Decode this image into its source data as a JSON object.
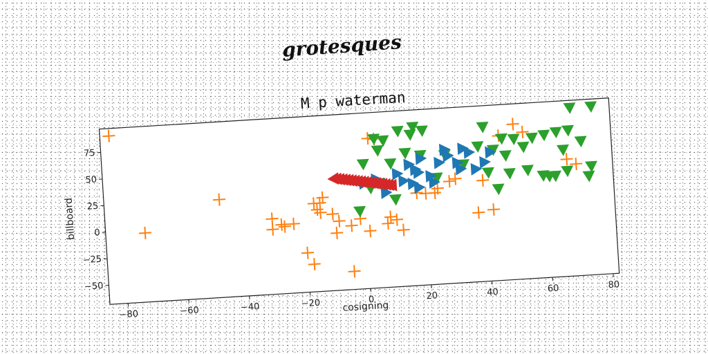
{
  "figure": {
    "suptitle": "grotesques",
    "title": "M p waterman"
  },
  "chart_data": {
    "type": "scatter",
    "xlabel": "cosigning",
    "ylabel": "billboard",
    "xlim": [
      -86,
      82
    ],
    "ylim": [
      -68,
      97
    ],
    "xticks": [
      -80,
      -60,
      -40,
      -20,
      0,
      20,
      40,
      60,
      80
    ],
    "yticks": [
      75,
      50,
      25,
      0,
      -25,
      -50
    ],
    "xtick_labels": [
      "−80",
      "−60",
      "−40",
      "−20",
      "0",
      "20",
      "40",
      "60",
      "80"
    ],
    "ytick_labels": [
      "75",
      "50",
      "25",
      "0",
      "−25",
      "−50"
    ],
    "grid": false,
    "series": [
      {
        "marker": "plus",
        "color": "#ff7f0e",
        "x": [
          -83,
          -73,
          -48,
          -31,
          -31,
          -28,
          -27,
          -24,
          -20,
          -18,
          -17,
          -16,
          -15,
          -15,
          -14,
          -11,
          -10,
          -9,
          -5,
          -5,
          -2,
          1,
          2,
          4,
          7,
          8,
          10,
          12,
          17,
          20,
          23,
          24,
          28,
          30,
          37,
          39,
          42,
          45,
          50,
          53,
          67,
          70
        ],
        "y": [
          90,
          -3,
          24,
          3,
          -7,
          -3,
          -5,
          -3,
          -31,
          -42,
          15,
          9,
          6,
          15,
          20,
          4,
          -14,
          -3,
          -8,
          -51,
          -2,
          -14,
          73,
          72,
          -8,
          -2,
          -5,
          -15,
          19,
          18,
          18,
          22,
          28,
          30,
          -3,
          27,
          -1,
          68,
          78,
          70,
          42,
          37
        ]
      },
      {
        "marker": "triangle-down",
        "color": "#2ca02c",
        "x": [
          -2,
          0,
          2,
          4,
          5,
          5,
          7,
          9,
          10,
          12,
          14,
          16,
          17,
          19,
          20,
          24,
          27,
          33,
          38,
          40,
          41,
          43,
          44,
          46,
          47,
          48,
          50,
          53,
          54,
          56,
          59,
          60,
          61,
          63,
          64,
          66,
          67,
          68,
          69,
          72,
          74,
          75,
          76
        ],
        "y": [
          5,
          49,
          26,
          72,
          61,
          30,
          70,
          48,
          14,
          78,
          57,
          74,
          81,
          54,
          77,
          32,
          53,
          43,
          59,
          77,
          34,
          55,
          18,
          65,
          49,
          32,
          64,
          56,
          34,
          64,
          28,
          66,
          27,
          27,
          68,
          51,
          31,
          69,
          90,
          58,
          25,
          34,
          90
        ]
      },
      {
        "marker": "triangle-right",
        "color": "#1f77b4",
        "x": [
          0,
          4,
          7,
          8,
          11,
          13,
          15,
          16,
          17,
          18,
          18,
          19,
          22,
          23,
          25,
          27,
          28,
          31,
          32,
          33,
          35,
          37,
          40,
          42
        ],
        "y": [
          31,
          34,
          21,
          29,
          38,
          31,
          46,
          28,
          41,
          38,
          24,
          51,
          34,
          28,
          46,
          58,
          52,
          45,
          39,
          58,
          54,
          38,
          44,
          53
        ]
      },
      {
        "marker": "triangle-left",
        "color": "#d62728",
        "x": [
          -10,
          -9,
          -8,
          -7,
          -6,
          -5,
          -4,
          -3,
          -2,
          -1,
          0,
          1,
          2,
          3,
          4,
          5,
          6,
          7,
          8,
          9
        ],
        "y": [
          37,
          36.5,
          36,
          35.5,
          35,
          34.5,
          34,
          33.5,
          33,
          32.5,
          32,
          31.5,
          31,
          30.5,
          30,
          29.5,
          29,
          28.5,
          28,
          27.5
        ]
      }
    ]
  }
}
